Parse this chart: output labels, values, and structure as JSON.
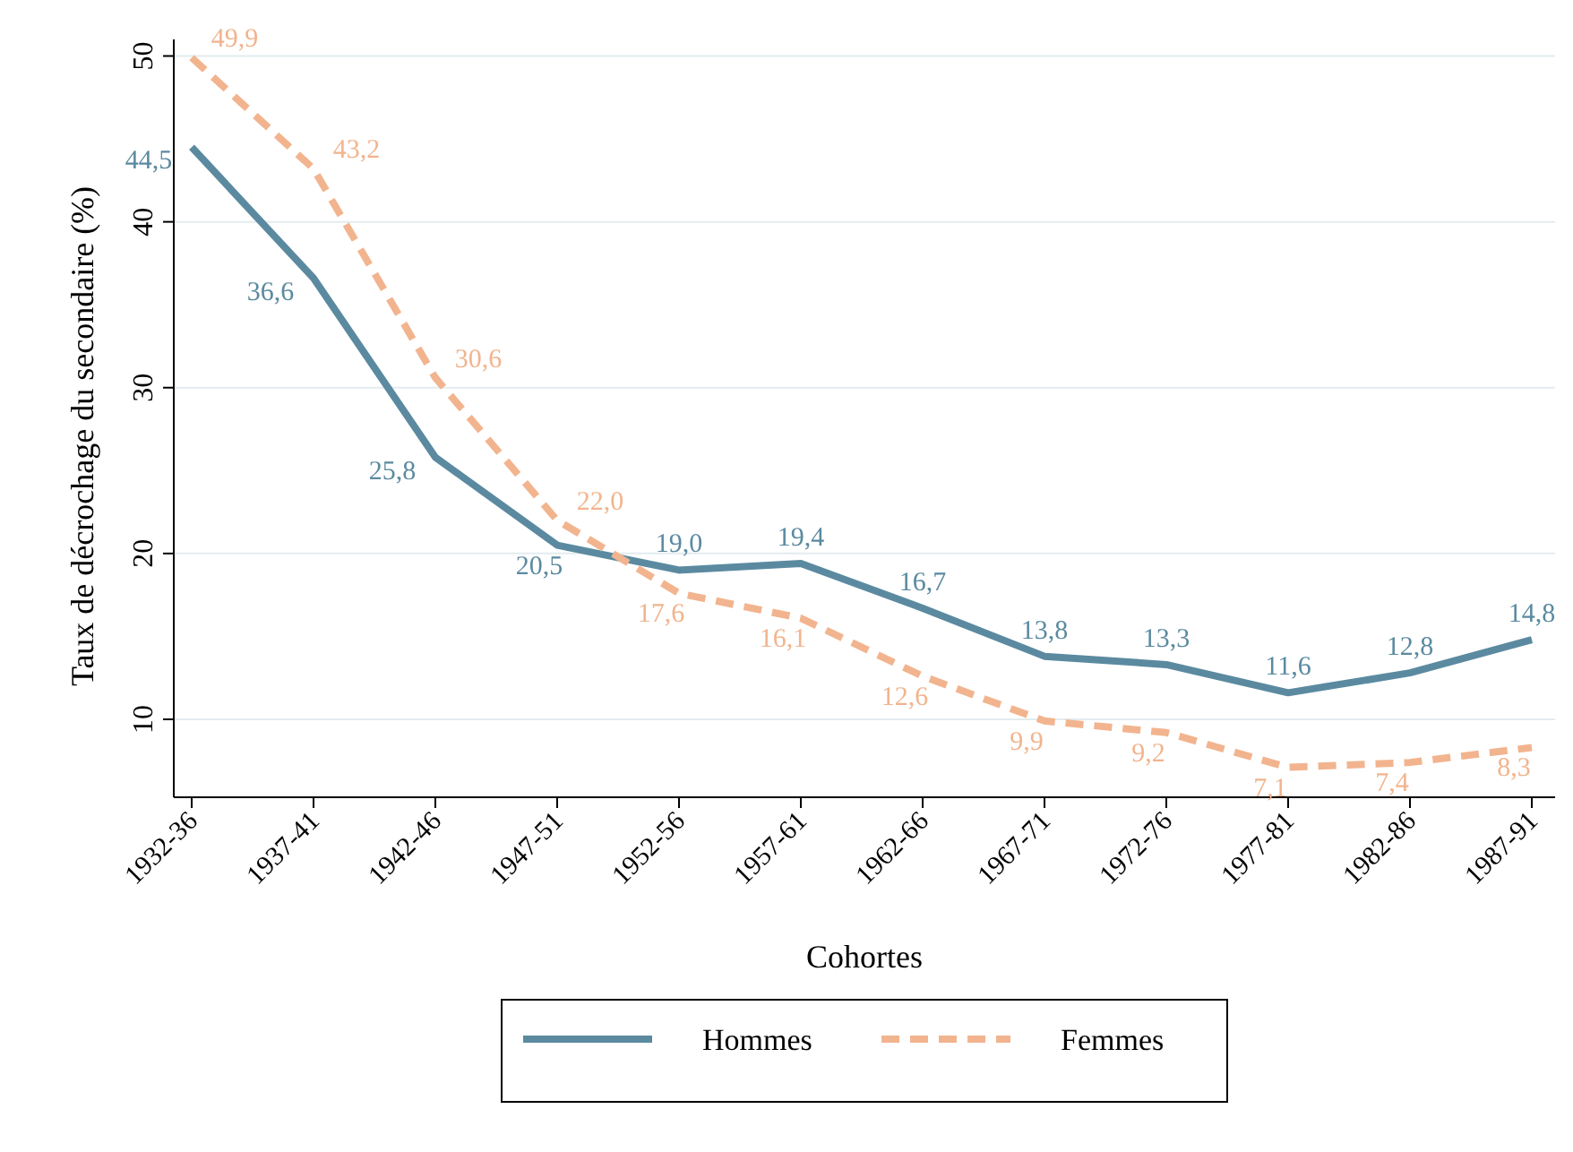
{
  "chart_data": {
    "type": "line",
    "xlabel": "Cohortes",
    "ylabel": "Taux de décrochage du secondaire (%)",
    "categories": [
      "1932-36",
      "1937-41",
      "1942-46",
      "1947-51",
      "1952-56",
      "1957-61",
      "1962-66",
      "1967-71",
      "1972-76",
      "1977-81",
      "1982-86",
      "1987-91"
    ],
    "series": [
      {
        "name": "Hommes",
        "color": "#5b8aa0",
        "line_style": "solid",
        "values": [
          44.5,
          36.6,
          25.8,
          20.5,
          19.0,
          19.4,
          16.7,
          13.8,
          13.3,
          11.6,
          12.8,
          14.8
        ],
        "value_labels": [
          "44,5",
          "36,6",
          "25,8",
          "20,5",
          "19,0",
          "19,4",
          "16,7",
          "13,8",
          "13,3",
          "11,6",
          "12,8",
          "14,8"
        ]
      },
      {
        "name": "Femmes",
        "color": "#f2b48e",
        "line_style": "dashed",
        "values": [
          49.9,
          43.2,
          30.6,
          22.0,
          17.6,
          16.1,
          12.6,
          9.9,
          9.2,
          7.1,
          7.4,
          8.3
        ],
        "value_labels": [
          "49,9",
          "43,2",
          "30,6",
          "22,0",
          "17,6",
          "16,1",
          "12,6",
          "9,9",
          "9,2",
          "7,1",
          "7,4",
          "8,3"
        ]
      }
    ],
    "ylim": [
      5.3,
      51
    ],
    "yticks": [
      10,
      20,
      30,
      40,
      50
    ],
    "grid": "y",
    "legend": "bottom"
  }
}
